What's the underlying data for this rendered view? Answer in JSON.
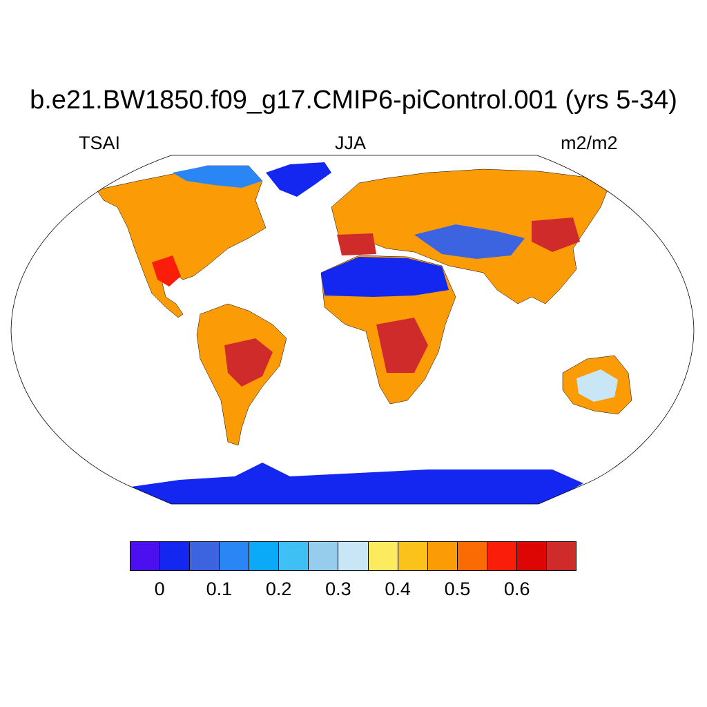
{
  "title": "b.e21.BW1850.f09_g17.CMIP6-piControl.001 (yrs 5-34)",
  "left_label": "TSAI",
  "center_label": "JJA",
  "right_label": "m2/m2",
  "legend": {
    "colors": [
      "#4b0ff0",
      "#1427f0",
      "#3c64e0",
      "#2a86f5",
      "#0aaaf8",
      "#3ec0f5",
      "#96cdee",
      "#c8e6f6",
      "#fcea5f",
      "#fcc21c",
      "#fb9b05",
      "#fb6b04",
      "#fa1d0a",
      "#de0505",
      "#cf2b2b"
    ],
    "tick_labels": [
      "0",
      "0.1",
      "0.2",
      "0.3",
      "0.4",
      "0.5",
      "0.6"
    ]
  },
  "map": {
    "projection": "Robinson",
    "variable": "TSAI",
    "colors": {
      "ocean": "#ffffff",
      "land": "#fb9b05",
      "antarctica": "#1427f0",
      "greenland": "#1427f0",
      "sahara": "#1427f0",
      "high": "#cf2b2b",
      "low": "#96cdee"
    }
  }
}
